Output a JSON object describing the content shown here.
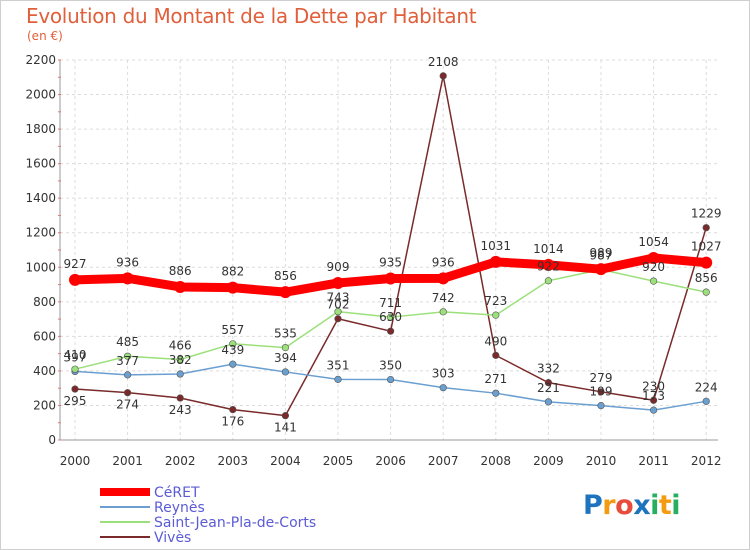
{
  "chart_data": {
    "type": "line",
    "title": "Evolution du Montant de la Dette par Habitant",
    "subtitle": "(en €)",
    "categories": [
      "2000",
      "2001",
      "2002",
      "2003",
      "2004",
      "2005",
      "2006",
      "2007",
      "2008",
      "2009",
      "2010",
      "2011",
      "2012"
    ],
    "yticks": [
      "0",
      "200",
      "400",
      "600",
      "800",
      "1000",
      "1200",
      "1400",
      "1600",
      "1800",
      "2000",
      "2200"
    ],
    "ylim": [
      0,
      2200
    ],
    "grid": true,
    "legend_placement": "bottom-left",
    "series": [
      {
        "name": "CéRET",
        "color": "#ff0000",
        "values": [
          927,
          936,
          886,
          882,
          856,
          909,
          935,
          936,
          1031,
          1014,
          989,
          1054,
          1027
        ]
      },
      {
        "name": "Reynès",
        "color": "#6a9fd0",
        "values": [
          397,
          377,
          382,
          439,
          394,
          351,
          350,
          303,
          271,
          221,
          199,
          173,
          224
        ]
      },
      {
        "name": "Saint-Jean-Pla-de-Corts",
        "color": "#9be07a",
        "values": [
          410,
          485,
          466,
          557,
          535,
          743,
          711,
          742,
          723,
          922,
          987,
          920,
          856
        ]
      },
      {
        "name": "Vivès",
        "color": "#7a2a2a",
        "values": [
          295,
          274,
          243,
          176,
          141,
          702,
          630,
          2108,
          490,
          332,
          279,
          230,
          1229
        ]
      }
    ]
  },
  "logo": {
    "text": "Proxiti",
    "letters": [
      "P",
      "r",
      "o",
      "x",
      "i",
      "t",
      "i"
    ],
    "colors": [
      "#1e73be",
      "#f39c12",
      "#e74c3c",
      "#1e73be",
      "#27ae60",
      "#f39c12",
      "#27ae60"
    ]
  }
}
